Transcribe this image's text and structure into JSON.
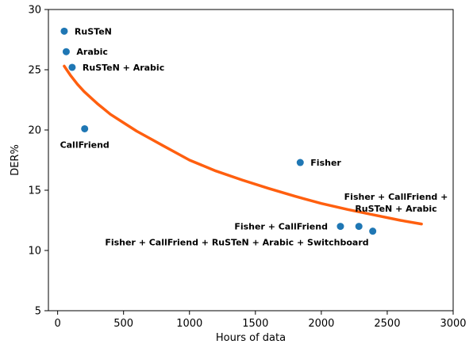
{
  "chart_data": {
    "type": "scatter",
    "xlabel": "Hours of data",
    "ylabel": "DER%",
    "xlim": [
      -70,
      3000
    ],
    "ylim": [
      5,
      30
    ],
    "xticks": [
      0,
      500,
      1000,
      1500,
      2000,
      2500,
      3000
    ],
    "yticks": [
      5,
      10,
      15,
      20,
      25,
      30
    ],
    "grid": false,
    "colors": {
      "points": "#1f77b4",
      "curve": "#ff5f0f"
    },
    "points": [
      {
        "x": 50,
        "y": 28.2,
        "label_lines": [
          "RuSTeN"
        ],
        "anchor": "start"
      },
      {
        "x": 65,
        "y": 26.5,
        "label_lines": [
          "Arabic"
        ],
        "anchor": "start"
      },
      {
        "x": 110,
        "y": 25.2,
        "label_lines": [
          "RuSTeN + Arabic"
        ],
        "anchor": "start"
      },
      {
        "x": 205,
        "y": 20.1,
        "label_lines": [
          "CallFriend"
        ],
        "anchor": "middle"
      },
      {
        "x": 1840,
        "y": 17.3,
        "label_lines": [
          "Fisher"
        ],
        "anchor": "start"
      },
      {
        "x": 2145,
        "y": 12.0,
        "label_lines": [
          "Fisher + CallFriend"
        ],
        "anchor": "end"
      },
      {
        "x": 2285,
        "y": 12.0,
        "label_lines": [
          "Fisher + CallFriend +",
          "RuSTeN + Arabic"
        ],
        "anchor": "middle"
      },
      {
        "x": 2390,
        "y": 11.6,
        "label_lines": [
          "Fisher + CallFriend + RuSTeN + Arabic + Switchboard"
        ],
        "anchor": "end"
      }
    ],
    "curve": {
      "x": [
        50,
        100,
        150,
        200,
        300,
        400,
        500,
        600,
        700,
        800,
        900,
        1000,
        1200,
        1400,
        1600,
        1800,
        2000,
        2200,
        2400,
        2600,
        2760
      ],
      "y": [
        25.3,
        24.5,
        23.8,
        23.2,
        22.2,
        21.3,
        20.6,
        19.9,
        19.3,
        18.7,
        18.1,
        17.5,
        16.6,
        15.85,
        15.15,
        14.5,
        13.9,
        13.4,
        12.95,
        12.5,
        12.2
      ]
    }
  }
}
